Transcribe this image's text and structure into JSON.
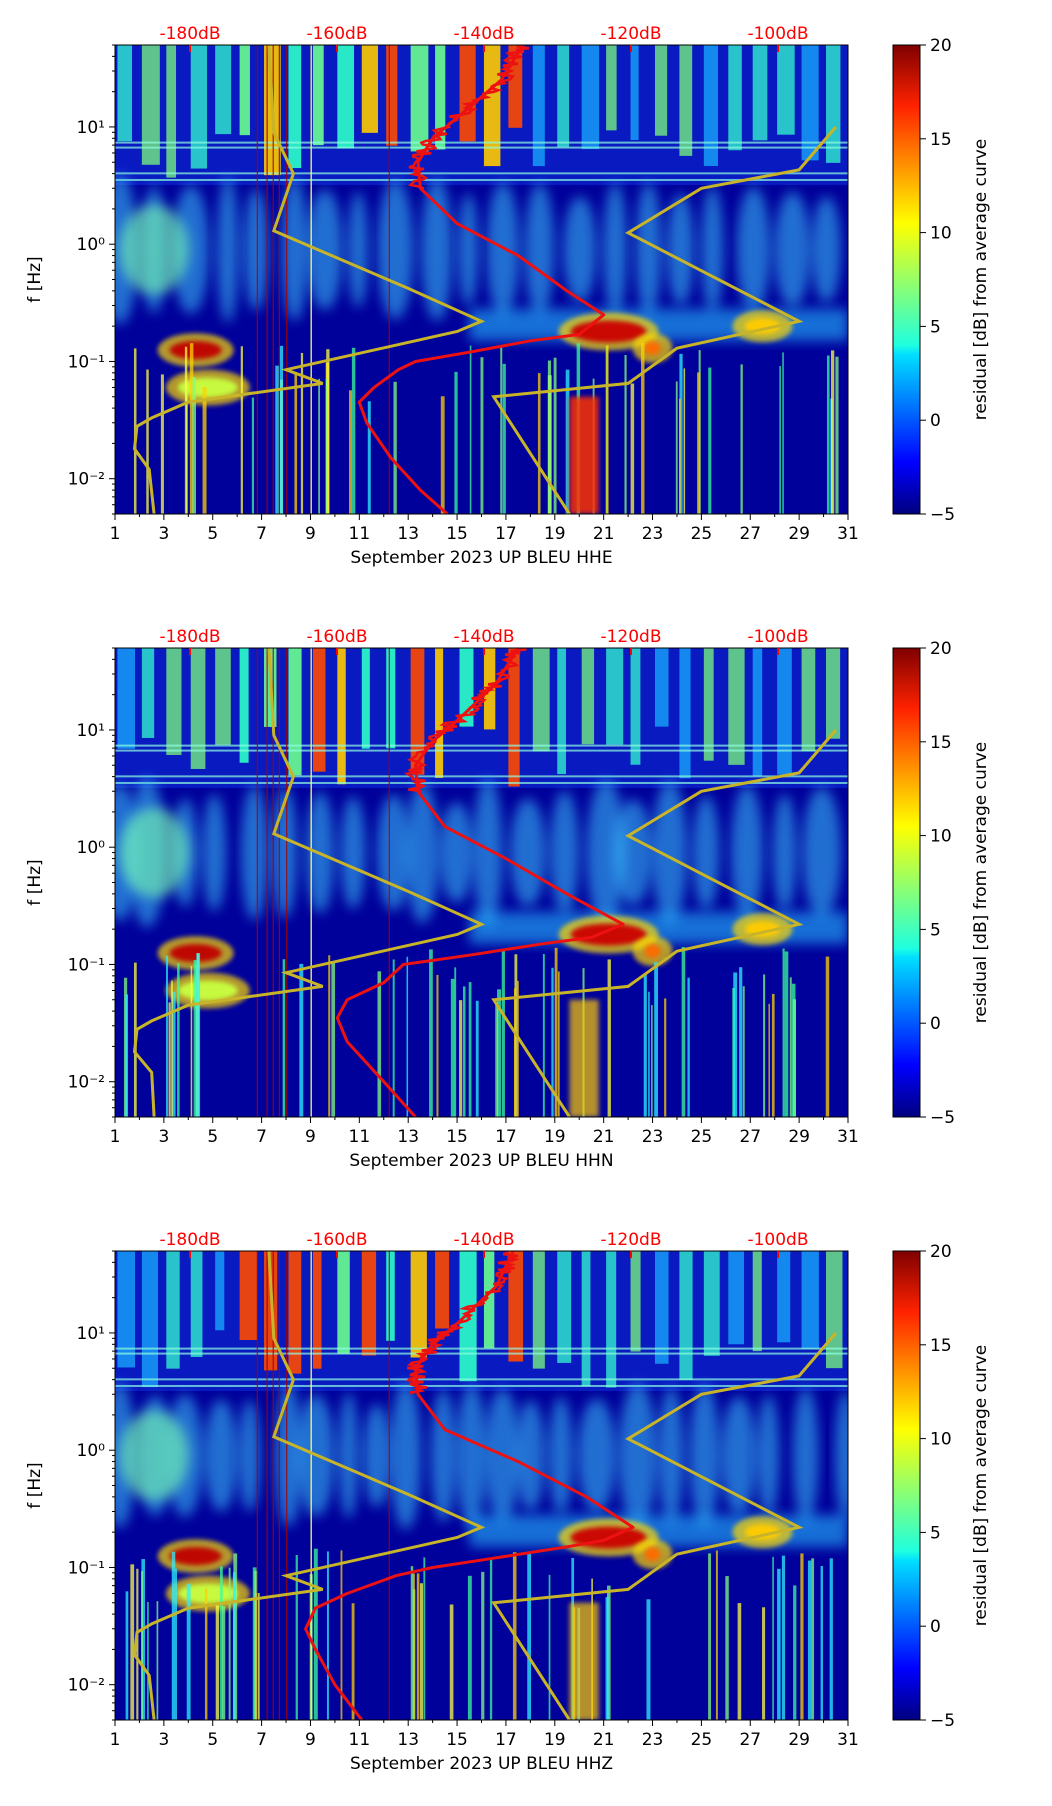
{
  "chart_data": [
    {
      "type": "heatmap",
      "xlabel": "September 2023 UP BLEU  HHE",
      "ylabel": "f [Hz]",
      "x_ticks": [
        "1",
        "3",
        "5",
        "7",
        "9",
        "11",
        "13",
        "15",
        "17",
        "19",
        "21",
        "23",
        "25",
        "27",
        "29",
        "31"
      ],
      "y_ticks": [
        "10⁻²",
        "10⁻¹",
        "10⁰",
        "10¹"
      ],
      "xlim": [
        1,
        31
      ],
      "ylim_hz": [
        0.005,
        50
      ],
      "y_scale": "log",
      "top_axis_ticks": [
        "-180dB",
        "-160dB",
        "-140dB",
        "-120dB",
        "-100dB"
      ],
      "colorbar": {
        "label": "residual [dB] from average curve",
        "ticks": [
          "20",
          "15",
          "10",
          "5",
          "0",
          "−5"
        ],
        "range": [
          -5,
          20
        ]
      },
      "red_curve": [
        [
          14.6,
          0.005
        ],
        [
          13.5,
          0.008
        ],
        [
          12.3,
          0.015
        ],
        [
          11.3,
          0.03
        ],
        [
          11.0,
          0.045
        ],
        [
          11.6,
          0.06
        ],
        [
          12.6,
          0.085
        ],
        [
          13.3,
          0.1
        ],
        [
          15.5,
          0.12
        ],
        [
          18.0,
          0.15
        ],
        [
          20.0,
          0.17
        ],
        [
          21.0,
          0.25
        ],
        [
          19.5,
          0.4
        ],
        [
          17.5,
          0.8
        ],
        [
          15.0,
          1.5
        ],
        [
          13.5,
          3
        ],
        [
          13.4,
          5
        ],
        [
          14.0,
          8
        ],
        [
          15.0,
          12
        ],
        [
          16.8,
          25
        ],
        [
          17.7,
          50
        ]
      ],
      "yellow_curve": [
        [
          2.6,
          0.005
        ],
        [
          2.4,
          0.012
        ],
        [
          1.8,
          0.018
        ],
        [
          1.9,
          0.028
        ],
        [
          2.5,
          0.033
        ],
        [
          4.0,
          0.045
        ],
        [
          9.5,
          0.065
        ],
        [
          8.0,
          0.085
        ],
        [
          15.0,
          0.18
        ],
        [
          16.0,
          0.22
        ],
        [
          13.0,
          0.42
        ],
        [
          7.5,
          1.3
        ],
        [
          8.3,
          4
        ],
        [
          7.5,
          9
        ],
        [
          7.3,
          50
        ]
      ],
      "yellow_curve_2": [
        [
          19.6,
          0.005
        ],
        [
          16.5,
          0.05
        ],
        [
          22.0,
          0.065
        ],
        [
          24.0,
          0.13
        ],
        [
          29.0,
          0.22
        ],
        [
          22.0,
          1.25
        ],
        [
          25.0,
          3
        ],
        [
          29.0,
          4.3
        ],
        [
          30.5,
          10
        ]
      ]
    },
    {
      "type": "heatmap",
      "xlabel": "September 2023 UP BLEU  HHN",
      "ylabel": "f [Hz]",
      "x_ticks": [
        "1",
        "3",
        "5",
        "7",
        "9",
        "11",
        "13",
        "15",
        "17",
        "19",
        "21",
        "23",
        "25",
        "27",
        "29",
        "31"
      ],
      "y_ticks": [
        "10⁻²",
        "10⁻¹",
        "10⁰",
        "10¹"
      ],
      "xlim": [
        1,
        31
      ],
      "ylim_hz": [
        0.005,
        50
      ],
      "y_scale": "log",
      "top_axis_ticks": [
        "-180dB",
        "-160dB",
        "-140dB",
        "-120dB",
        "-100dB"
      ],
      "colorbar": {
        "label": "residual [dB] from average curve",
        "ticks": [
          "20",
          "15",
          "10",
          "5",
          "0",
          "−5"
        ],
        "range": [
          -5,
          20
        ]
      },
      "red_curve": [
        [
          13.3,
          0.005
        ],
        [
          12.0,
          0.01
        ],
        [
          10.5,
          0.022
        ],
        [
          10.1,
          0.035
        ],
        [
          10.5,
          0.05
        ],
        [
          12.0,
          0.07
        ],
        [
          12.8,
          0.1
        ],
        [
          15.5,
          0.12
        ],
        [
          18.5,
          0.15
        ],
        [
          20.5,
          0.17
        ],
        [
          21.8,
          0.22
        ],
        [
          19.5,
          0.4
        ],
        [
          17.0,
          0.8
        ],
        [
          14.5,
          1.5
        ],
        [
          13.4,
          3
        ],
        [
          13.3,
          5
        ],
        [
          14.0,
          8
        ],
        [
          15.0,
          12
        ],
        [
          16.6,
          25
        ],
        [
          17.5,
          50
        ]
      ],
      "yellow_curve": [
        [
          2.6,
          0.005
        ],
        [
          2.5,
          0.012
        ],
        [
          1.8,
          0.018
        ],
        [
          1.9,
          0.028
        ],
        [
          2.5,
          0.033
        ],
        [
          4.0,
          0.045
        ],
        [
          9.5,
          0.065
        ],
        [
          8.0,
          0.085
        ],
        [
          15.0,
          0.18
        ],
        [
          16.0,
          0.22
        ],
        [
          13.0,
          0.42
        ],
        [
          7.5,
          1.3
        ],
        [
          8.3,
          4
        ],
        [
          7.5,
          9
        ],
        [
          7.3,
          50
        ]
      ],
      "yellow_curve_2": [
        [
          19.6,
          0.005
        ],
        [
          16.5,
          0.05
        ],
        [
          22.0,
          0.065
        ],
        [
          24.0,
          0.13
        ],
        [
          29.0,
          0.22
        ],
        [
          22.0,
          1.25
        ],
        [
          25.0,
          3
        ],
        [
          29.0,
          4.3
        ],
        [
          30.5,
          10
        ]
      ]
    },
    {
      "type": "heatmap",
      "xlabel": "September 2023 UP BLEU  HHZ",
      "ylabel": "f [Hz]",
      "x_ticks": [
        "1",
        "3",
        "5",
        "7",
        "9",
        "11",
        "13",
        "15",
        "17",
        "19",
        "21",
        "23",
        "25",
        "27",
        "29",
        "31"
      ],
      "y_ticks": [
        "10⁻²",
        "10⁻¹",
        "10⁰",
        "10¹"
      ],
      "xlim": [
        1,
        31
      ],
      "ylim_hz": [
        0.005,
        50
      ],
      "y_scale": "log",
      "top_axis_ticks": [
        "-180dB",
        "-160dB",
        "-140dB",
        "-120dB",
        "-100dB"
      ],
      "colorbar": {
        "label": "residual [dB] from average curve",
        "ticks": [
          "20",
          "15",
          "10",
          "5",
          "0",
          "−5"
        ],
        "range": [
          -5,
          20
        ]
      },
      "red_curve": [
        [
          11.1,
          0.005
        ],
        [
          10.0,
          0.01
        ],
        [
          9.2,
          0.02
        ],
        [
          8.8,
          0.03
        ],
        [
          9.2,
          0.045
        ],
        [
          10.5,
          0.06
        ],
        [
          12.5,
          0.085
        ],
        [
          14.0,
          0.1
        ],
        [
          16.5,
          0.12
        ],
        [
          19.5,
          0.15
        ],
        [
          21.0,
          0.17
        ],
        [
          22.2,
          0.22
        ],
        [
          20.3,
          0.4
        ],
        [
          17.5,
          0.8
        ],
        [
          14.5,
          1.5
        ],
        [
          13.4,
          3
        ],
        [
          13.3,
          5
        ],
        [
          14.0,
          8
        ],
        [
          15.0,
          12
        ],
        [
          16.6,
          25
        ],
        [
          17.3,
          50
        ]
      ],
      "yellow_curve": [
        [
          2.6,
          0.005
        ],
        [
          2.4,
          0.012
        ],
        [
          1.8,
          0.018
        ],
        [
          1.9,
          0.028
        ],
        [
          2.5,
          0.033
        ],
        [
          4.0,
          0.045
        ],
        [
          9.5,
          0.065
        ],
        [
          8.0,
          0.085
        ],
        [
          15.0,
          0.18
        ],
        [
          16.0,
          0.22
        ],
        [
          13.0,
          0.42
        ],
        [
          7.5,
          1.3
        ],
        [
          8.3,
          4
        ],
        [
          7.5,
          9
        ],
        [
          7.3,
          50
        ]
      ],
      "yellow_curve_2": [
        [
          19.6,
          0.005
        ],
        [
          16.5,
          0.05
        ],
        [
          22.0,
          0.065
        ],
        [
          24.0,
          0.13
        ],
        [
          29.0,
          0.22
        ],
        [
          22.0,
          1.25
        ],
        [
          25.0,
          3
        ],
        [
          29.0,
          4.3
        ],
        [
          30.5,
          10
        ]
      ]
    }
  ]
}
